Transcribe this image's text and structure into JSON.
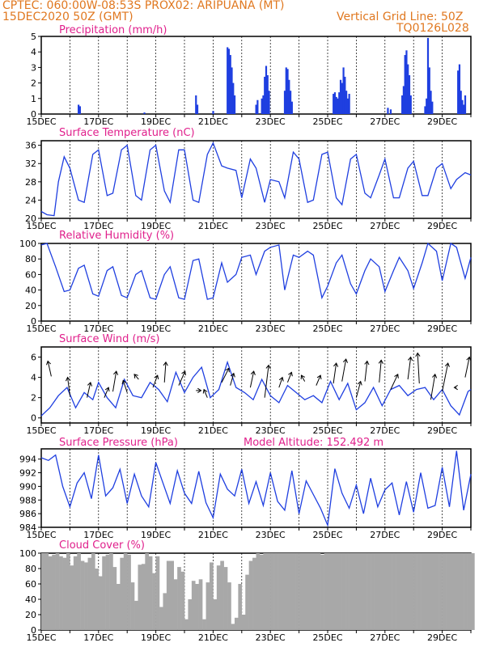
{
  "header": {
    "line1": "CPTEC:   060:00W-08:53S   PROX02: ARIPUANA (MT)",
    "date": "15DEC2020 50Z (GMT)",
    "grid_note": "Vertical Grid Line: 50Z",
    "code": "TQ0126L028"
  },
  "colors": {
    "series": "#1f3fe0",
    "bars": "#1f3fe0",
    "cloud": "#a8a8a8",
    "title": "#e0208c",
    "header": "#e07820",
    "arrow": "#000000"
  },
  "chart_data": [
    {
      "type": "bar",
      "title": "Precipitation (mm/h)",
      "ylim": [
        0,
        5
      ],
      "yticks": [
        0,
        1,
        2,
        3,
        4,
        5
      ],
      "xlabels": [
        "15DEC",
        "17DEC",
        "19DEC",
        "21DEC",
        "23DEC",
        "25DEC",
        "27DEC",
        "29DEC"
      ],
      "bars": [
        [
          16.3,
          0.6
        ],
        [
          16.35,
          0.5
        ],
        [
          18.6,
          0.1
        ],
        [
          20.4,
          1.2
        ],
        [
          20.45,
          0.6
        ],
        [
          21.0,
          0.2
        ],
        [
          21.5,
          4.3
        ],
        [
          21.55,
          4.2
        ],
        [
          21.6,
          3.8
        ],
        [
          21.65,
          3.0
        ],
        [
          21.7,
          2.0
        ],
        [
          21.75,
          1.2
        ],
        [
          22.5,
          0.6
        ],
        [
          22.55,
          0.9
        ],
        [
          22.7,
          1.0
        ],
        [
          22.75,
          1.2
        ],
        [
          22.8,
          2.4
        ],
        [
          22.85,
          3.1
        ],
        [
          22.9,
          2.5
        ],
        [
          22.95,
          1.5
        ],
        [
          23.5,
          1.5
        ],
        [
          23.55,
          3.0
        ],
        [
          23.6,
          2.9
        ],
        [
          23.65,
          2.2
        ],
        [
          23.7,
          1.5
        ],
        [
          23.75,
          0.8
        ],
        [
          25.2,
          1.3
        ],
        [
          25.25,
          1.4
        ],
        [
          25.3,
          1.1
        ],
        [
          25.35,
          1.0
        ],
        [
          25.4,
          1.4
        ],
        [
          25.45,
          2.2
        ],
        [
          25.5,
          2.0
        ],
        [
          25.55,
          3.0
        ],
        [
          25.6,
          2.4
        ],
        [
          25.65,
          1.5
        ],
        [
          25.7,
          1.0
        ],
        [
          25.75,
          1.3
        ],
        [
          27.1,
          0.4
        ],
        [
          27.2,
          0.3
        ],
        [
          27.6,
          1.2
        ],
        [
          27.65,
          1.8
        ],
        [
          27.7,
          3.8
        ],
        [
          27.75,
          4.1
        ],
        [
          27.8,
          3.2
        ],
        [
          27.85,
          2.5
        ],
        [
          27.9,
          1.2
        ],
        [
          28.4,
          0.5
        ],
        [
          28.45,
          1.0
        ],
        [
          28.5,
          4.9
        ],
        [
          28.55,
          3.0
        ],
        [
          28.6,
          1.5
        ],
        [
          28.65,
          0.8
        ],
        [
          29.55,
          2.8
        ],
        [
          29.6,
          3.2
        ],
        [
          29.65,
          1.5
        ],
        [
          29.7,
          0.9
        ],
        [
          29.75,
          0.6
        ],
        [
          29.8,
          1.2
        ]
      ]
    },
    {
      "type": "line",
      "title": "Surface Temperature (nC)",
      "ylim": [
        20,
        37
      ],
      "yticks": [
        20,
        24,
        28,
        32,
        36
      ],
      "xlabels": [
        "15DEC",
        "17DEC",
        "19DEC",
        "21DEC",
        "23DEC",
        "25DEC",
        "27DEC",
        "29DEC"
      ],
      "x": [
        15.0,
        15.2,
        15.45,
        15.6,
        15.8,
        16.0,
        16.3,
        16.5,
        16.8,
        17.0,
        17.3,
        17.5,
        17.8,
        18.0,
        18.3,
        18.5,
        18.8,
        19.0,
        19.3,
        19.5,
        19.8,
        20.0,
        20.3,
        20.5,
        20.8,
        21.0,
        21.3,
        21.5,
        21.8,
        22.0,
        22.3,
        22.5,
        22.8,
        23.0,
        23.3,
        23.5,
        23.8,
        24.0,
        24.3,
        24.5,
        24.8,
        25.0,
        25.3,
        25.5,
        25.8,
        26.0,
        26.3,
        26.5,
        26.8,
        27.0,
        27.3,
        27.5,
        27.8,
        28.0,
        28.3,
        28.5,
        28.8,
        29.0,
        29.3,
        29.5,
        29.8,
        30.0
      ],
      "y": [
        21.5,
        20.8,
        20.6,
        28,
        33.5,
        31,
        24,
        23.5,
        34,
        35,
        25,
        25.5,
        35,
        36,
        25,
        24,
        35,
        36,
        26,
        23.5,
        35,
        35,
        24,
        23.5,
        34,
        36.5,
        31.5,
        31,
        30.5,
        24.5,
        33,
        31,
        23.5,
        28.5,
        28,
        24.5,
        34.5,
        33,
        23.5,
        24,
        34,
        34.5,
        24.5,
        23,
        33,
        34,
        25.5,
        24.5,
        29.5,
        33,
        24.5,
        24.5,
        31,
        32.5,
        25,
        25,
        31,
        32,
        26.5,
        28.5,
        30,
        29.5
      ]
    },
    {
      "type": "line",
      "title": "Relative Humidity (%)",
      "ylim": [
        0,
        100
      ],
      "yticks": [
        0,
        20,
        40,
        60,
        80,
        100
      ],
      "xlabels": [
        "15DEC",
        "17DEC",
        "19DEC",
        "21DEC",
        "23DEC",
        "25DEC",
        "27DEC",
        "29DEC"
      ],
      "x": [
        15.0,
        15.2,
        15.5,
        15.8,
        16.0,
        16.3,
        16.5,
        16.8,
        17.0,
        17.3,
        17.5,
        17.8,
        18.0,
        18.3,
        18.5,
        18.8,
        19.0,
        19.3,
        19.5,
        19.8,
        20.0,
        20.3,
        20.5,
        20.8,
        21.0,
        21.3,
        21.5,
        21.8,
        22.0,
        22.3,
        22.5,
        22.8,
        23.0,
        23.3,
        23.5,
        23.8,
        24.0,
        24.3,
        24.5,
        24.8,
        25.0,
        25.3,
        25.5,
        25.8,
        26.0,
        26.3,
        26.5,
        26.8,
        27.0,
        27.3,
        27.5,
        27.8,
        28.0,
        28.3,
        28.5,
        28.8,
        29.0,
        29.3,
        29.5,
        29.8,
        30.0
      ],
      "y": [
        98,
        100,
        70,
        38,
        40,
        68,
        72,
        35,
        32,
        65,
        70,
        33,
        30,
        60,
        65,
        30,
        28,
        60,
        70,
        30,
        28,
        78,
        80,
        28,
        30,
        75,
        50,
        60,
        82,
        85,
        60,
        90,
        95,
        98,
        40,
        85,
        82,
        90,
        85,
        30,
        45,
        75,
        85,
        48,
        35,
        65,
        80,
        70,
        38,
        65,
        82,
        65,
        42,
        75,
        100,
        90,
        52,
        100,
        95,
        55,
        82
      ]
    },
    {
      "type": "line",
      "title": "Surface Wind (m/s)",
      "ylim": [
        -0.5,
        7
      ],
      "yticks": [
        0,
        2,
        4,
        6
      ],
      "xlabels": [
        "15DEC",
        "17DEC",
        "19DEC",
        "21DEC",
        "23DEC",
        "25DEC",
        "27DEC",
        "29DEC"
      ],
      "x": [
        15.0,
        15.3,
        15.6,
        15.9,
        16.2,
        16.5,
        16.8,
        17.0,
        17.3,
        17.6,
        17.9,
        18.2,
        18.5,
        18.8,
        19.1,
        19.4,
        19.7,
        20.0,
        20.3,
        20.6,
        20.9,
        21.2,
        21.5,
        21.8,
        22.1,
        22.4,
        22.7,
        23.0,
        23.3,
        23.6,
        23.9,
        24.2,
        24.5,
        24.8,
        25.1,
        25.4,
        25.7,
        26.0,
        26.3,
        26.6,
        26.9,
        27.2,
        27.5,
        27.8,
        28.1,
        28.4,
        28.7,
        29.0,
        29.3,
        29.6,
        29.9,
        30.0
      ],
      "y": [
        0.2,
        1.0,
        2.2,
        3.0,
        1.0,
        2.5,
        1.8,
        3.5,
        2.0,
        1.0,
        3.8,
        2.2,
        2.0,
        3.5,
        2.8,
        1.6,
        4.5,
        2.5,
        4.0,
        5.0,
        2.0,
        2.8,
        5.5,
        3.0,
        2.5,
        1.8,
        3.8,
        2.2,
        1.5,
        3.2,
        2.5,
        1.8,
        2.2,
        1.5,
        3.6,
        1.8,
        3.4,
        0.8,
        1.5,
        3.0,
        1.2,
        2.8,
        3.2,
        2.2,
        2.8,
        3.0,
        1.8,
        2.8,
        1.2,
        0.3,
        2.6,
        2.8
      ]
    },
    {
      "type": "line",
      "title": "Surface Pressure (hPa)",
      "subtitle": "Model Altitude: 152.492  m",
      "ylim": [
        984,
        995.5
      ],
      "yticks": [
        984,
        986,
        988,
        990,
        992,
        994
      ],
      "xlabels": [
        "15DEC",
        "17DEC",
        "19DEC",
        "21DEC",
        "23DEC",
        "25DEC",
        "27DEC",
        "29DEC"
      ],
      "x": [
        15.0,
        15.25,
        15.5,
        15.75,
        16.0,
        16.25,
        16.5,
        16.75,
        17.0,
        17.25,
        17.5,
        17.75,
        18.0,
        18.25,
        18.5,
        18.75,
        19.0,
        19.25,
        19.5,
        19.75,
        20.0,
        20.25,
        20.5,
        20.75,
        21.0,
        21.25,
        21.5,
        21.75,
        22.0,
        22.25,
        22.5,
        22.75,
        23.0,
        23.25,
        23.5,
        23.75,
        24.0,
        24.25,
        24.5,
        24.75,
        25.0,
        25.25,
        25.5,
        25.75,
        26.0,
        26.25,
        26.5,
        26.75,
        27.0,
        27.25,
        27.5,
        27.75,
        28.0,
        28.25,
        28.5,
        28.75,
        29.0,
        29.25,
        29.5,
        29.75,
        30.0
      ],
      "y": [
        994.2,
        993.8,
        994.6,
        990.0,
        987.0,
        990.5,
        992.0,
        988.2,
        994.6,
        988.6,
        989.8,
        992.5,
        987.5,
        991.8,
        988.6,
        987.0,
        993.5,
        990.5,
        987.5,
        992.3,
        989.0,
        987.5,
        992.2,
        987.6,
        985.4,
        991.8,
        989.6,
        988.6,
        992.5,
        987.5,
        990.7,
        987.2,
        992.0,
        987.8,
        986.5,
        992.3,
        986.0,
        990.8,
        988.8,
        986.8,
        984.3,
        992.6,
        989.0,
        986.8,
        990.2,
        986.0,
        991.2,
        987.0,
        989.5,
        990.5,
        985.8,
        990.7,
        986.2,
        992.0,
        986.8,
        987.2,
        992.8,
        987.0,
        995.2,
        986.5,
        991.8
      ]
    },
    {
      "type": "bar",
      "title": "Cloud Cover (%)",
      "ylim": [
        0,
        100
      ],
      "yticks": [
        0,
        20,
        40,
        60,
        80,
        100
      ],
      "xlabels": [
        "15DEC",
        "17DEC",
        "19DEC",
        "21DEC",
        "23DEC",
        "25DEC",
        "27DEC",
        "29DEC"
      ],
      "x_start": 15.0,
      "x_step": 0.125,
      "values": [
        100,
        100,
        96,
        98,
        100,
        96,
        94,
        100,
        84,
        96,
        100,
        90,
        88,
        94,
        100,
        80,
        70,
        96,
        98,
        100,
        82,
        60,
        94,
        100,
        98,
        62,
        38,
        85,
        86,
        100,
        96,
        74,
        96,
        30,
        48,
        90,
        90,
        66,
        82,
        76,
        14,
        40,
        64,
        60,
        66,
        14,
        62,
        88,
        40,
        84,
        90,
        82,
        62,
        8,
        16,
        60,
        20,
        72,
        90,
        94,
        100,
        98,
        100,
        100,
        100,
        100,
        100,
        100,
        100,
        100,
        100,
        100,
        100,
        100,
        100,
        100,
        100,
        100,
        98,
        100,
        100,
        100,
        100,
        100,
        100,
        100,
        100,
        100,
        100,
        100,
        100,
        100,
        100,
        100,
        100,
        100,
        100,
        100,
        100,
        100,
        100,
        100,
        100,
        100,
        100,
        100,
        100,
        100,
        100,
        100,
        100,
        100,
        100,
        100,
        100,
        100,
        100,
        100,
        100,
        100,
        100
      ]
    }
  ],
  "wind_arrows": [
    [
      15.35,
      4.1,
      -0.12,
      0.15
    ],
    [
      16.0,
      2.2,
      -0.08,
      0.18
    ],
    [
      16.6,
      2.0,
      0.12,
      0.15
    ],
    [
      17.2,
      2.0,
      0.15,
      0.1
    ],
    [
      17.5,
      2.6,
      0.12,
      0.2
    ],
    [
      18.0,
      2.5,
      -0.14,
      0.12
    ],
    [
      18.4,
      3.8,
      -0.15,
      0.05
    ],
    [
      18.9,
      3.0,
      0.16,
      0.12
    ],
    [
      19.3,
      3.5,
      0.05,
      0.2
    ],
    [
      19.8,
      3.2,
      0.22,
      0.14
    ],
    [
      20.4,
      2.7,
      0.18,
      0.0
    ],
    [
      20.8,
      2.0,
      -0.12,
      0.08
    ],
    [
      21.3,
      3.5,
      0.25,
      0.14
    ],
    [
      21.6,
      3.2,
      0.12,
      0.12
    ],
    [
      22.3,
      3.0,
      0.12,
      0.16
    ],
    [
      22.8,
      2.0,
      0.14,
      0.32
    ],
    [
      23.3,
      3.0,
      0.12,
      0.1
    ],
    [
      23.6,
      3.5,
      0.14,
      0.1
    ],
    [
      24.2,
      3.6,
      -0.12,
      0.06
    ],
    [
      24.6,
      3.2,
      0.15,
      0.1
    ],
    [
      25.2,
      3.4,
      0.1,
      0.2
    ],
    [
      25.5,
      3.6,
      0.14,
      0.22
    ],
    [
      26.0,
      2.0,
      0.15,
      0.16
    ],
    [
      26.3,
      3.6,
      0.08,
      0.2
    ],
    [
      26.8,
      3.5,
      0.07,
      0.22
    ],
    [
      27.2,
      2.8,
      0.25,
      0.15
    ],
    [
      27.8,
      3.8,
      0.1,
      0.22
    ],
    [
      28.2,
      3.4,
      -0.06,
      0.3
    ],
    [
      28.6,
      1.8,
      0.15,
      0.25
    ],
    [
      29.0,
      2.6,
      0.2,
      0.28
    ],
    [
      29.5,
      3.0,
      -0.08,
      0.0
    ],
    [
      29.8,
      4.0,
      0.15,
      0.2
    ]
  ]
}
